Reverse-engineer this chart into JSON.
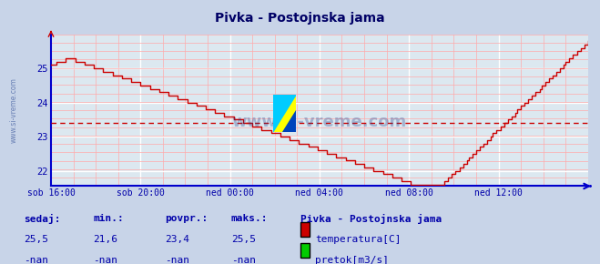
{
  "title": "Pivka - Postojnska jama",
  "bg_color": "#c8d4e8",
  "plot_bg_color": "#dce8f0",
  "grid_color_minor": "#ffaaaa",
  "grid_color_major": "#ffffff",
  "line_color": "#cc0000",
  "axis_color": "#0000cc",
  "text_color": "#0000aa",
  "dashed_line_color": "#cc0000",
  "dashed_line_y": 23.4,
  "ylim": [
    21.55,
    26.0
  ],
  "yticks": [
    22,
    23,
    24,
    25
  ],
  "xtick_labels": [
    "sob 16:00",
    "sob 20:00",
    "ned 00:00",
    "ned 04:00",
    "ned 08:00",
    "ned 12:00"
  ],
  "xtick_positions": [
    0,
    48,
    96,
    144,
    192,
    240
  ],
  "total_points": 289,
  "legend_station": "Pivka - Postojnska jama",
  "legend_temp_label": "temperatura[C]",
  "legend_flow_label": "pretok[m3/s]",
  "legend_temp_color": "#cc0000",
  "legend_flow_color": "#00cc00",
  "footer_labels": [
    "sedaj:",
    "min.:",
    "povpr.:",
    "maks.:"
  ],
  "footer_temp_values": [
    "25,5",
    "21,6",
    "23,4",
    "25,5"
  ],
  "footer_flow_values": [
    "-nan",
    "-nan",
    "-nan",
    "-nan"
  ],
  "watermark_color": "#1a3a8a"
}
